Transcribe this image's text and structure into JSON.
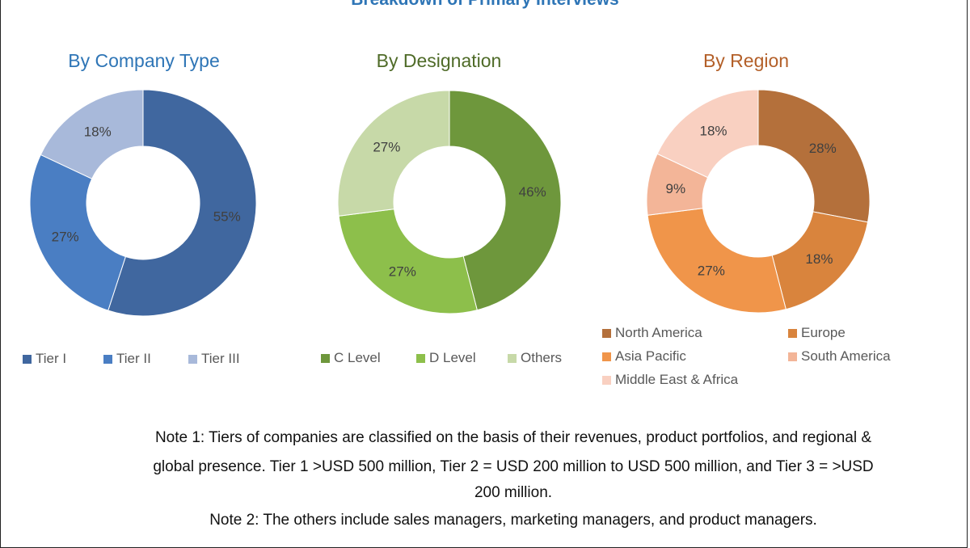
{
  "chart_data": [
    {
      "type": "pie",
      "donut": true,
      "title": "By Company Type",
      "title_color": "#2e75b6",
      "categories": [
        "Tier I",
        "Tier II",
        "Tier III"
      ],
      "values": [
        55,
        27,
        18
      ],
      "colors": [
        "#40679f",
        "#4a7ec3",
        "#a8b9da"
      ],
      "data_labels": [
        "55%",
        "27%",
        "18%"
      ],
      "legend": "bottom"
    },
    {
      "type": "pie",
      "donut": true,
      "title": "By Designation",
      "title_color": "#4f6b28",
      "categories": [
        "C Level",
        "D Level",
        "Others"
      ],
      "values": [
        46,
        27,
        27
      ],
      "colors": [
        "#6e973c",
        "#8dbf4b",
        "#c7d9a8"
      ],
      "data_labels": [
        "46%",
        "27%",
        "27%"
      ],
      "legend": "bottom"
    },
    {
      "type": "pie",
      "donut": true,
      "title": "By Region",
      "title_color": "#b35f28",
      "categories": [
        "North America",
        "Europe",
        "Asia Pacific",
        "South America",
        "Middle East & Africa"
      ],
      "values": [
        28,
        18,
        27,
        9,
        18
      ],
      "colors": [
        "#b4703b",
        "#d9843d",
        "#f0954a",
        "#f3b598",
        "#f9d0c1"
      ],
      "data_labels": [
        "28%",
        "18%",
        "27%",
        "9%",
        "18%"
      ],
      "legend": "bottom"
    }
  ],
  "main_title": "Breakdown of Primary Interviews",
  "notes": [
    "Note 1: Tiers of companies are classified on the basis of their revenues, product portfolios, and regional &",
    "global presence. Tier 1 >USD 500 million, Tier 2 = USD 200 million to USD 500 million, and Tier 3 = >USD",
    "200 million.",
    "Note 2: The others include sales managers, marketing managers, and product managers."
  ]
}
